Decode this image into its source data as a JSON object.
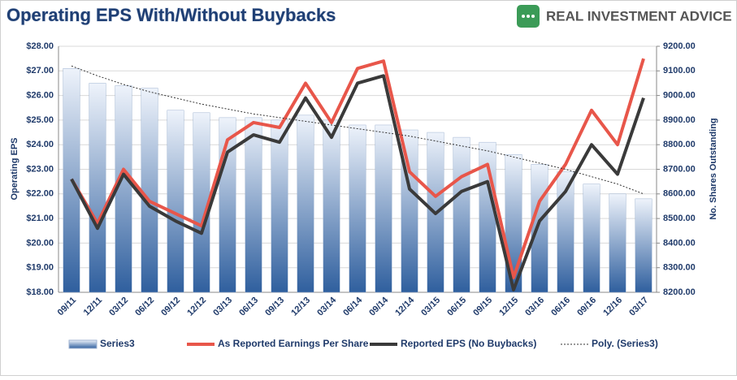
{
  "chart_data": {
    "type": "combo",
    "title": "Operating EPS With/Without Buybacks",
    "brand": "REAL INVESTMENT ADVICE",
    "y_label": "Operating EPS",
    "y2_label": "No. Shares Outstanding",
    "categories": [
      "09/11",
      "12/11",
      "03/12",
      "06/12",
      "09/12",
      "12/12",
      "03/13",
      "06/13",
      "09/13",
      "12/13",
      "03/14",
      "06/14",
      "09/14",
      "12/14",
      "03/15",
      "06/15",
      "09/15",
      "12/15",
      "03/16",
      "06/16",
      "09/16",
      "12/16",
      "03/17"
    ],
    "ylim": [
      18,
      28
    ],
    "yticks": [
      {
        "value": 18,
        "label": "$18.00"
      },
      {
        "value": 19,
        "label": "$19.00"
      },
      {
        "value": 20,
        "label": "$20.00"
      },
      {
        "value": 21,
        "label": "$21.00"
      },
      {
        "value": 22,
        "label": "$22.00"
      },
      {
        "value": 23,
        "label": "$23.00"
      },
      {
        "value": 24,
        "label": "$24.00"
      },
      {
        "value": 25,
        "label": "$25.00"
      },
      {
        "value": 26,
        "label": "$26.00"
      },
      {
        "value": 27,
        "label": "$27.00"
      },
      {
        "value": 28,
        "label": "$28.00"
      }
    ],
    "y2lim": [
      8200,
      9200
    ],
    "y2ticks": [
      {
        "value": 8200,
        "label": "8200.00"
      },
      {
        "value": 8300,
        "label": "8300.00"
      },
      {
        "value": 8400,
        "label": "8400.00"
      },
      {
        "value": 8500,
        "label": "8500.00"
      },
      {
        "value": 8600,
        "label": "8600.00"
      },
      {
        "value": 8700,
        "label": "8700.00"
      },
      {
        "value": 8800,
        "label": "8800.00"
      },
      {
        "value": 8900,
        "label": "8900.00"
      },
      {
        "value": 9000,
        "label": "9000.00"
      },
      {
        "value": 9100,
        "label": "9100.00"
      },
      {
        "value": 9200,
        "label": "9200.00"
      }
    ],
    "series": [
      {
        "name": "Series3",
        "type": "bar",
        "axis": "y2",
        "color": "#2f5f9e",
        "values": [
          9110,
          9050,
          9040,
          9030,
          8940,
          8930,
          8910,
          8910,
          8900,
          8920,
          8900,
          8880,
          8880,
          8860,
          8850,
          8830,
          8810,
          8760,
          8720,
          8690,
          8640,
          8600,
          8580
        ]
      },
      {
        "name": "As Reported Earnings Per Share",
        "type": "line",
        "color": "#e8564a",
        "width": 4,
        "values": [
          22.6,
          20.8,
          23.0,
          21.7,
          21.2,
          20.7,
          24.2,
          24.9,
          24.7,
          26.5,
          24.9,
          27.1,
          27.4,
          22.9,
          21.9,
          22.7,
          23.2,
          18.6,
          21.7,
          23.2,
          25.4,
          24.0,
          27.5
        ]
      },
      {
        "name": "Reported EPS (No Buybacks)",
        "type": "line",
        "color": "#3a3a3a",
        "width": 4,
        "values": [
          22.6,
          20.6,
          22.8,
          21.5,
          20.9,
          20.4,
          23.7,
          24.4,
          24.1,
          25.9,
          24.3,
          26.5,
          26.8,
          22.2,
          21.2,
          22.1,
          22.5,
          18.1,
          20.9,
          22.1,
          24.0,
          22.8,
          25.9
        ]
      },
      {
        "name": "Poly. (Series3)",
        "type": "trend",
        "axis": "y2",
        "color": "#333333",
        "values": [
          9120,
          9080,
          9045,
          9015,
          8990,
          8965,
          8945,
          8925,
          8910,
          8895,
          8880,
          8865,
          8850,
          8835,
          8815,
          8795,
          8775,
          8750,
          8725,
          8700,
          8670,
          8640,
          8600
        ]
      }
    ]
  }
}
